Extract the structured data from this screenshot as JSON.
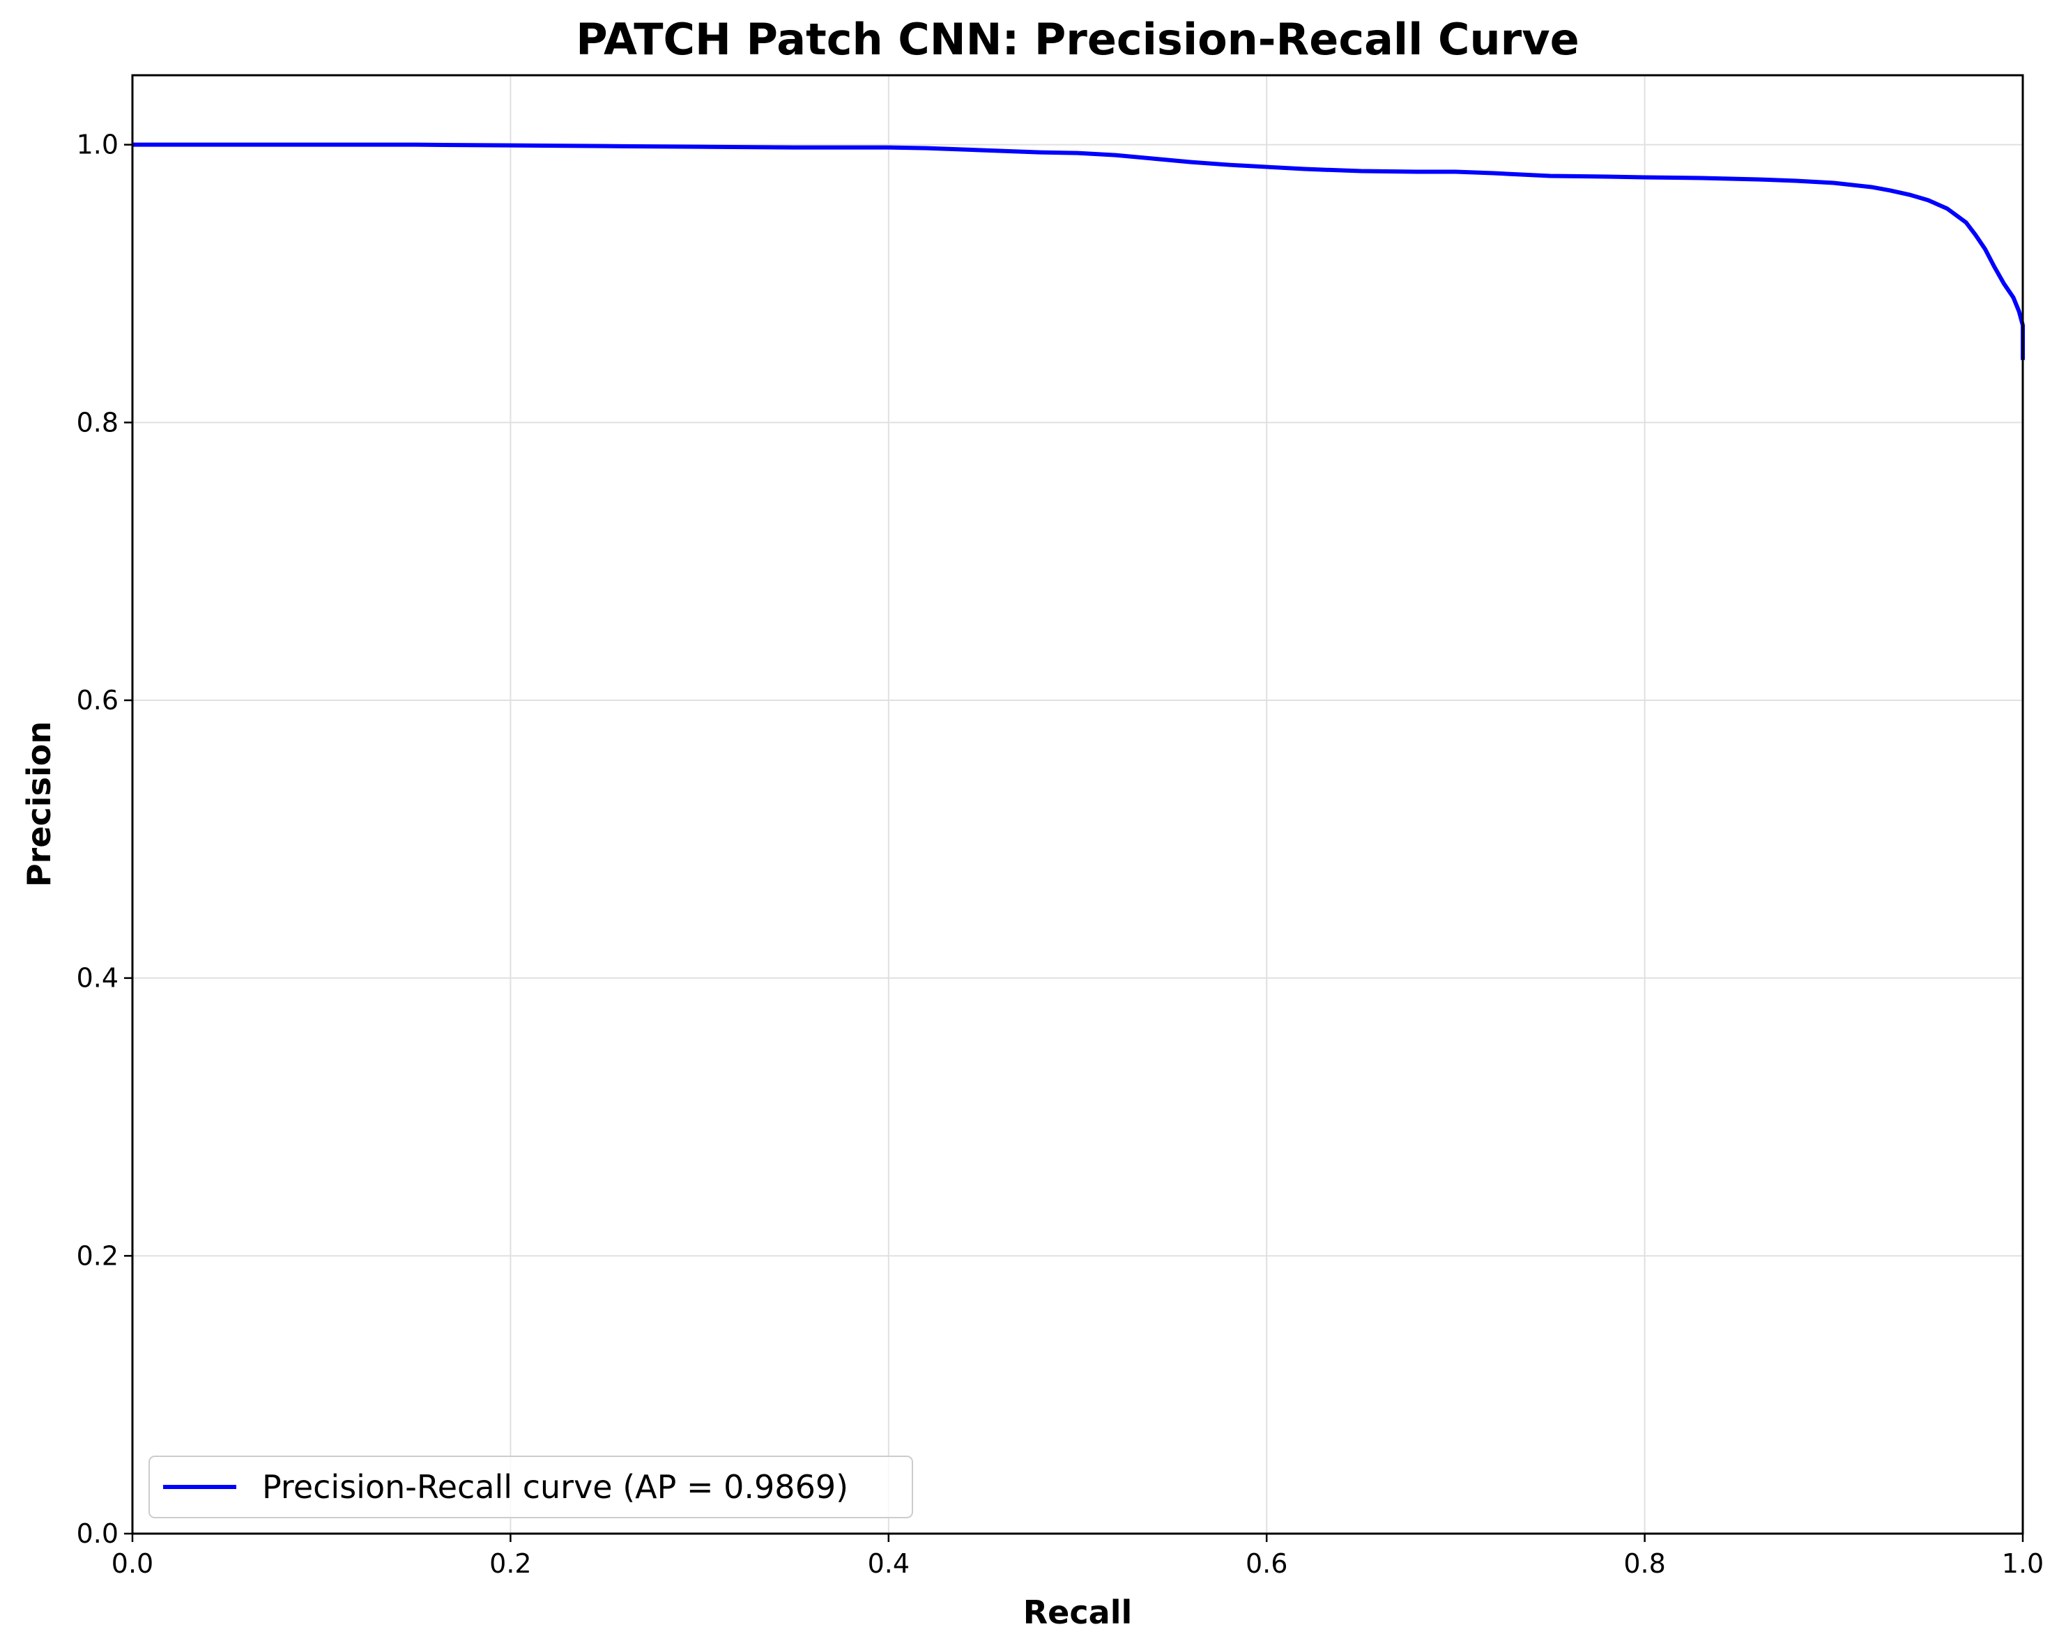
{
  "chart_data": {
    "type": "line",
    "title": "PATCH Patch CNN: Precision-Recall Curve",
    "xlabel": "Recall",
    "ylabel": "Precision",
    "xlim": [
      0.0,
      1.0
    ],
    "ylim": [
      0.0,
      1.05
    ],
    "xticks": [
      "0.0",
      "0.2",
      "0.4",
      "0.6",
      "0.8",
      "1.0"
    ],
    "yticks": [
      "0.0",
      "0.2",
      "0.4",
      "0.6",
      "0.8",
      "1.0"
    ],
    "grid": true,
    "legend_position": "lower-left",
    "series": [
      {
        "name": "Precision-Recall curve (AP = 0.9869)",
        "color": "#0000ff",
        "x": [
          0.0,
          0.05,
          0.1,
          0.15,
          0.2,
          0.25,
          0.3,
          0.35,
          0.4,
          0.42,
          0.45,
          0.48,
          0.5,
          0.52,
          0.54,
          0.56,
          0.58,
          0.6,
          0.62,
          0.65,
          0.68,
          0.7,
          0.72,
          0.75,
          0.78,
          0.8,
          0.83,
          0.86,
          0.88,
          0.9,
          0.92,
          0.93,
          0.94,
          0.95,
          0.96,
          0.97,
          0.975,
          0.98,
          0.985,
          0.99,
          0.995,
          0.998,
          1.0,
          1.0
        ],
        "y": [
          1.0,
          1.0,
          1.0,
          1.0,
          0.9995,
          0.999,
          0.9985,
          0.998,
          0.998,
          0.9975,
          0.996,
          0.9945,
          0.994,
          0.9925,
          0.99,
          0.9875,
          0.9855,
          0.984,
          0.9825,
          0.981,
          0.9805,
          0.9805,
          0.9795,
          0.9775,
          0.977,
          0.9765,
          0.976,
          0.975,
          0.974,
          0.9725,
          0.9695,
          0.967,
          0.964,
          0.96,
          0.954,
          0.944,
          0.935,
          0.925,
          0.912,
          0.9,
          0.89,
          0.88,
          0.87,
          0.845
        ]
      }
    ]
  }
}
